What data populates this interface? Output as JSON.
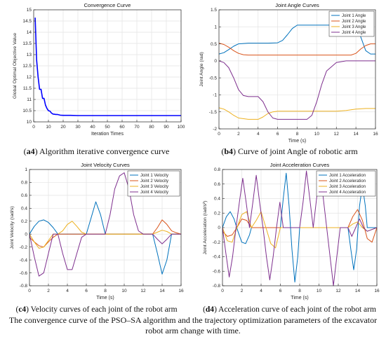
{
  "chart_data": [
    {
      "id": "a4",
      "type": "line",
      "title": "Convergence Curve",
      "xlabel": "Iteration Times",
      "ylabel": "Global Optimal Objective Value",
      "xlim": [
        0,
        100
      ],
      "ylim": [
        10,
        15
      ],
      "xticks": [
        0,
        10,
        20,
        30,
        40,
        50,
        60,
        70,
        80,
        90,
        100
      ],
      "yticks": [
        10,
        10.5,
        11,
        11.5,
        12,
        12.5,
        13,
        13.5,
        14,
        14.5,
        15
      ],
      "grid": true,
      "legend": null,
      "series": [
        {
          "name": "",
          "color": "#0000ff",
          "x": [
            1,
            2,
            3,
            4,
            5,
            6,
            7,
            8,
            9,
            10,
            11,
            12,
            13,
            14,
            15,
            16,
            18,
            20,
            25,
            30,
            40,
            50,
            60,
            80,
            100
          ],
          "y": [
            14.65,
            12.75,
            12.0,
            11.45,
            11.45,
            11.05,
            11.05,
            10.75,
            10.6,
            10.5,
            10.48,
            10.4,
            10.35,
            10.34,
            10.33,
            10.33,
            10.3,
            10.29,
            10.29,
            10.28,
            10.28,
            10.28,
            10.28,
            10.28,
            10.28
          ]
        }
      ]
    },
    {
      "id": "b4",
      "type": "line",
      "title": "Joint Angle Curves",
      "xlabel": "Time (s)",
      "ylabel": "Joint Angle (rad)",
      "xlim": [
        0,
        16
      ],
      "ylim": [
        -2,
        1.5
      ],
      "xticks": [
        0,
        2,
        4,
        6,
        8,
        10,
        12,
        14,
        16
      ],
      "yticks": [
        -2,
        -1.5,
        -1,
        -0.5,
        0,
        0.5,
        1,
        1.5
      ],
      "grid": true,
      "legend": "top-right",
      "series": [
        {
          "name": "Joint 1 Angle",
          "color": "#0072bd",
          "x": [
            0,
            0.5,
            1,
            1.5,
            2,
            3,
            4,
            5,
            6,
            6.5,
            7,
            7.5,
            8,
            9,
            10,
            11,
            12,
            13,
            14,
            14.5,
            15,
            15.5,
            16
          ],
          "y": [
            0.2,
            0.24,
            0.33,
            0.43,
            0.5,
            0.52,
            0.52,
            0.52,
            0.53,
            0.6,
            0.77,
            0.95,
            1.05,
            1.05,
            1.05,
            1.05,
            1.05,
            1.05,
            1.0,
            0.7,
            0.3,
            0.2,
            0.2
          ]
        },
        {
          "name": "Joint 2 Angle",
          "color": "#d95319",
          "x": [
            0,
            0.5,
            1,
            1.5,
            2,
            2.5,
            3,
            4,
            6,
            8,
            10,
            12,
            13.5,
            14,
            14.5,
            15,
            15.5,
            16
          ],
          "y": [
            0.52,
            0.48,
            0.4,
            0.3,
            0.22,
            0.18,
            0.17,
            0.17,
            0.17,
            0.17,
            0.17,
            0.17,
            0.17,
            0.22,
            0.35,
            0.45,
            0.5,
            0.5
          ]
        },
        {
          "name": "Joint 3 Angle",
          "color": "#edb120",
          "x": [
            0,
            0.5,
            1,
            1.5,
            2,
            3,
            4,
            4.5,
            5,
            5.5,
            6,
            8,
            10,
            12,
            13,
            14,
            15,
            16
          ],
          "y": [
            -1.38,
            -1.42,
            -1.5,
            -1.6,
            -1.68,
            -1.72,
            -1.72,
            -1.65,
            -1.55,
            -1.5,
            -1.48,
            -1.48,
            -1.48,
            -1.48,
            -1.46,
            -1.42,
            -1.4,
            -1.4
          ]
        },
        {
          "name": "Joint 4 Angle",
          "color": "#7e2f8e",
          "x": [
            0,
            0.5,
            1,
            1.5,
            2,
            2.5,
            3,
            4,
            4.5,
            5,
            5.5,
            6,
            7,
            8,
            9,
            9.5,
            10,
            10.5,
            11,
            12,
            13,
            14,
            15,
            16
          ],
          "y": [
            0.0,
            -0.05,
            -0.2,
            -0.5,
            -0.85,
            -1.02,
            -1.05,
            -1.05,
            -1.2,
            -1.5,
            -1.68,
            -1.72,
            -1.72,
            -1.72,
            -1.72,
            -1.6,
            -1.2,
            -0.7,
            -0.3,
            -0.05,
            0.0,
            0.0,
            0.0,
            0.0
          ]
        }
      ]
    },
    {
      "id": "c4",
      "type": "line",
      "title": "Joint Velocity Curves",
      "xlabel": "Time (s)",
      "ylabel": "Joint Velocity (rad/s)",
      "xlim": [
        0,
        16
      ],
      "ylim": [
        -0.8,
        1.0
      ],
      "xticks": [
        0,
        2,
        4,
        6,
        8,
        10,
        12,
        14,
        16
      ],
      "yticks": [
        -0.8,
        -0.6,
        -0.4,
        -0.2,
        0,
        0.2,
        0.4,
        0.6,
        0.8,
        1
      ],
      "grid": true,
      "legend": "top-right",
      "series": [
        {
          "name": "Joint 1 Velocity",
          "color": "#0072bd",
          "x": [
            0,
            0.5,
            1,
            1.5,
            2,
            2.5,
            3,
            4,
            6,
            6.5,
            7,
            7.5,
            8,
            9,
            12,
            13,
            13.5,
            14,
            14.5,
            15,
            16
          ],
          "y": [
            0,
            0.12,
            0.2,
            0.22,
            0.18,
            0.1,
            0,
            0,
            0,
            0.25,
            0.5,
            0.3,
            0,
            0,
            0,
            0,
            -0.3,
            -0.62,
            -0.4,
            0,
            0
          ]
        },
        {
          "name": "Joint 2 Velocity",
          "color": "#d95319",
          "x": [
            0,
            0.5,
            1,
            1.5,
            2,
            2.5,
            3,
            13,
            13.5,
            14,
            14.5,
            15,
            15.5,
            16
          ],
          "y": [
            -0.05,
            -0.12,
            -0.18,
            -0.2,
            -0.12,
            -0.05,
            0,
            0,
            0.1,
            0.22,
            0.15,
            0.05,
            0.02,
            0
          ]
        },
        {
          "name": "Joint 3 Velocity",
          "color": "#edb120",
          "x": [
            0,
            0.5,
            1,
            1.5,
            2,
            2.5,
            3,
            3.5,
            4,
            4.5,
            5,
            5.5,
            6,
            13,
            13.5,
            14,
            14.5,
            15,
            16
          ],
          "y": [
            0,
            -0.12,
            -0.22,
            -0.2,
            -0.1,
            0,
            0,
            0.05,
            0.15,
            0.2,
            0.12,
            0.03,
            0,
            0,
            0.03,
            0.06,
            0.04,
            0,
            0
          ]
        },
        {
          "name": "Joint 4 Velocity",
          "color": "#7e2f8e",
          "x": [
            0,
            0.5,
            1,
            1.5,
            2,
            2.5,
            3,
            3.5,
            4,
            4.5,
            5,
            5.5,
            6,
            8,
            8.5,
            9,
            9.5,
            10,
            10.5,
            11,
            11.5,
            12,
            13,
            13.5,
            14,
            14.5,
            15,
            16
          ],
          "y": [
            0,
            -0.35,
            -0.65,
            -0.6,
            -0.3,
            0,
            0,
            -0.3,
            -0.55,
            -0.55,
            -0.3,
            -0.05,
            0,
            0,
            0.3,
            0.7,
            0.9,
            0.95,
            0.7,
            0.3,
            0.05,
            0,
            0,
            -0.08,
            -0.15,
            -0.08,
            0,
            0
          ]
        }
      ]
    },
    {
      "id": "d4",
      "type": "line",
      "title": "Joint Acceleration Curves",
      "xlabel": "Time (s)",
      "ylabel": "Joint Acceleration (rad/s²)",
      "xlim": [
        0,
        16
      ],
      "ylim": [
        -0.8,
        0.8
      ],
      "xticks": [
        0,
        2,
        4,
        6,
        8,
        10,
        12,
        14,
        16
      ],
      "yticks": [
        -0.8,
        -0.6,
        -0.4,
        -0.2,
        0,
        0.2,
        0.4,
        0.6,
        0.8
      ],
      "grid": true,
      "legend": "top-right",
      "series": [
        {
          "name": "Joint 1 Acceleration",
          "color": "#0072bd",
          "x": [
            0,
            0.4,
            0.8,
            1.2,
            1.6,
            2.0,
            2.4,
            2.8,
            3.0,
            6,
            6.3,
            6.6,
            6.9,
            7.2,
            7.5,
            7.8,
            8.0,
            13,
            13.3,
            13.6,
            13.9,
            14.2,
            14.5,
            14.8,
            15.0,
            16
          ],
          "y": [
            0,
            0.15,
            0.22,
            0.12,
            -0.05,
            -0.2,
            -0.22,
            -0.1,
            0,
            0,
            0.4,
            0.75,
            0.3,
            -0.3,
            -0.75,
            -0.4,
            0,
            0,
            -0.3,
            -0.58,
            -0.3,
            0.3,
            0.58,
            0.3,
            0,
            0
          ]
        },
        {
          "name": "Joint 2 Acceleration",
          "color": "#d95319",
          "x": [
            0,
            0.5,
            1,
            1.5,
            2,
            2.5,
            3,
            13,
            13.5,
            14,
            14.5,
            15,
            15.5,
            16
          ],
          "y": [
            -0.05,
            -0.12,
            -0.1,
            0.0,
            0.12,
            0.1,
            0,
            0,
            0.15,
            0.25,
            0.1,
            -0.15,
            -0.2,
            0
          ]
        },
        {
          "name": "Joint 3 Acceleration",
          "color": "#edb120",
          "x": [
            0,
            0.5,
            1,
            1.5,
            2,
            2.5,
            3,
            3.5,
            4,
            4.5,
            5,
            5.5,
            6,
            13,
            13.5,
            14,
            14.5,
            15,
            16
          ],
          "y": [
            0,
            -0.18,
            -0.2,
            0,
            0.18,
            0.22,
            0,
            0.1,
            0.22,
            0,
            -0.22,
            -0.28,
            0,
            0,
            0.05,
            0.08,
            0,
            -0.05,
            0
          ]
        },
        {
          "name": "Joint 4 Acceleration",
          "color": "#7e2f8e",
          "x": [
            0,
            0.35,
            0.7,
            1.05,
            1.4,
            1.75,
            2.1,
            2.45,
            2.8,
            3.15,
            3.5,
            3.85,
            4.2,
            4.55,
            4.9,
            5.25,
            5.6,
            5.95,
            6.3,
            8,
            8.35,
            8.7,
            9.05,
            9.4,
            9.75,
            10.1,
            10.45,
            10.8,
            11.15,
            11.5,
            11.85,
            12.2,
            13,
            13.4,
            13.8,
            14.2,
            14.6,
            15,
            16
          ],
          "y": [
            0,
            -0.35,
            -0.68,
            -0.4,
            0,
            0.35,
            0.68,
            0.35,
            0,
            0.35,
            0.72,
            0.35,
            0,
            -0.4,
            -0.72,
            -0.4,
            0,
            0.35,
            0,
            0,
            0.35,
            0.78,
            0.4,
            0,
            0.4,
            0.78,
            0.4,
            0,
            -0.4,
            -0.8,
            -0.4,
            0,
            0,
            -0.12,
            0,
            0.12,
            0,
            -0.05,
            0
          ]
        }
      ]
    }
  ],
  "captions": {
    "a4": {
      "label": "a4",
      "text": " Algorithm iterative convergence curve"
    },
    "b4": {
      "label": "b4",
      "text": " Curve of joint Angle of robotic arm"
    },
    "c4": {
      "label": "c4",
      "text": " Velocity curves of each joint of the robot arm"
    },
    "d4": {
      "label": "d4",
      "text": " Acceleration curve of each joint of the robot arm"
    }
  },
  "figure_caption": {
    "line1": "The convergence curve of the PSO–SA algorithm and the trajectory optimization parameters of the excavator",
    "line2": "robot arm change with time."
  }
}
